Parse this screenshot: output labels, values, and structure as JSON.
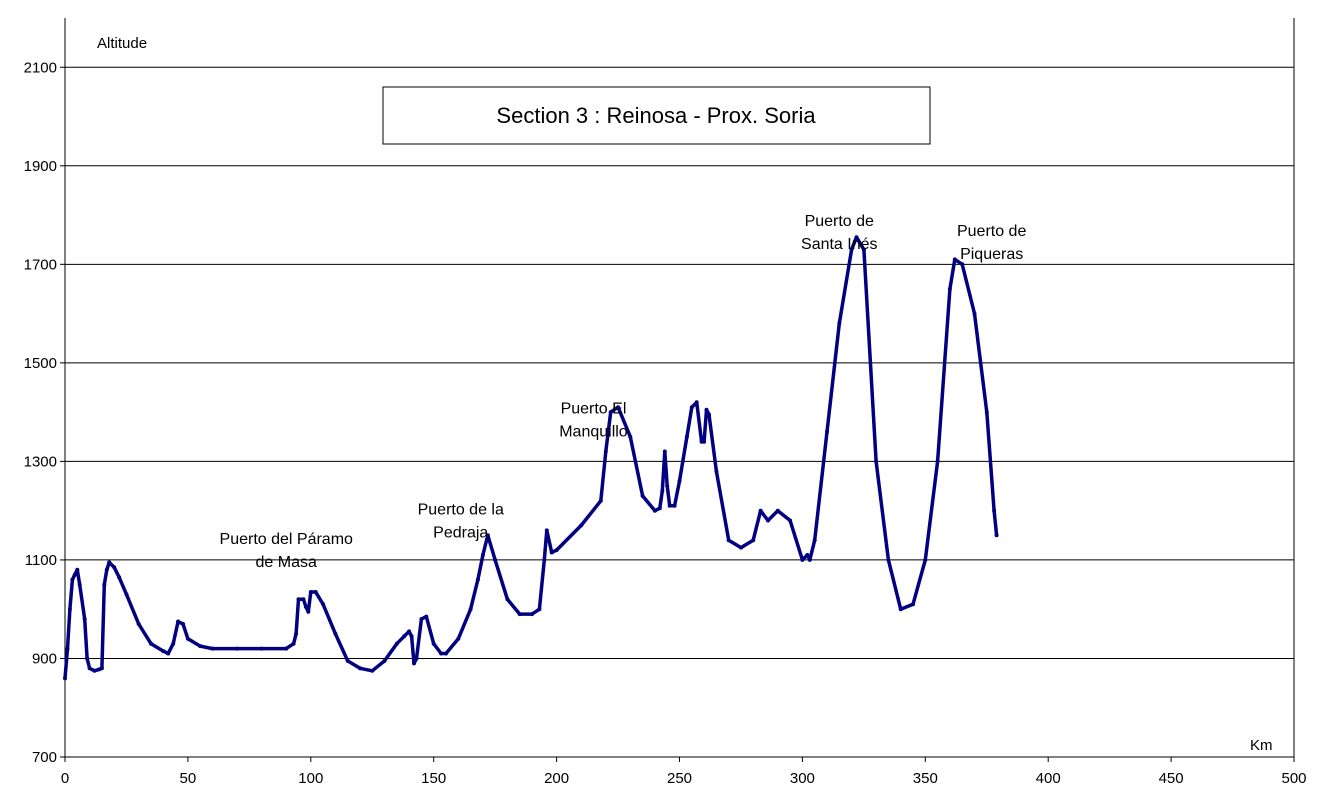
{
  "chart_data": {
    "type": "line",
    "title": "Section  3 : Reinosa - Prox. Soria",
    "xlabel": "Km",
    "ylabel": "Altitude",
    "xlim": [
      0,
      500
    ],
    "ylim": [
      700,
      2200
    ],
    "x_ticks": [
      0,
      50,
      100,
      150,
      200,
      250,
      300,
      350,
      400,
      450,
      500
    ],
    "y_ticks": [
      700,
      900,
      1100,
      1300,
      1500,
      1700,
      1900,
      2100
    ],
    "grid": "horizontal",
    "series_color": "#000080",
    "series": [
      {
        "x": [
          0,
          1,
          2,
          3,
          4,
          5,
          6,
          8,
          9,
          10,
          12,
          14,
          15,
          16,
          17,
          18,
          20,
          22,
          25,
          30,
          35,
          40,
          42,
          44,
          46,
          48,
          50,
          55,
          60,
          70,
          80,
          90,
          93,
          94,
          95,
          97,
          98,
          99,
          100,
          102,
          105,
          110,
          115,
          120,
          125,
          130,
          135,
          138,
          140,
          141,
          142,
          143,
          145,
          147,
          150,
          153,
          155,
          160,
          165,
          168,
          170,
          172,
          175,
          180,
          185,
          190,
          193,
          195,
          196,
          198,
          200,
          210,
          218,
          220,
          222,
          225,
          230,
          235,
          240,
          242,
          243,
          244,
          245,
          246,
          248,
          250,
          253,
          255,
          257,
          259,
          260,
          261,
          262,
          265,
          270,
          275,
          280,
          283,
          286,
          290,
          295,
          300,
          302,
          303,
          305,
          310,
          315,
          320,
          322,
          325,
          330,
          335,
          340,
          345,
          350,
          355,
          360,
          362,
          365,
          370,
          375,
          378,
          379
        ],
        "y": [
          860,
          920,
          1000,
          1060,
          1070,
          1080,
          1050,
          980,
          900,
          880,
          875,
          878,
          880,
          1050,
          1080,
          1095,
          1085,
          1065,
          1030,
          970,
          930,
          915,
          910,
          930,
          975,
          970,
          940,
          925,
          920,
          920,
          920,
          920,
          930,
          950,
          1020,
          1020,
          1005,
          995,
          1035,
          1035,
          1010,
          950,
          895,
          880,
          875,
          895,
          930,
          945,
          955,
          945,
          890,
          900,
          980,
          985,
          930,
          910,
          910,
          940,
          1000,
          1060,
          1110,
          1150,
          1100,
          1020,
          990,
          990,
          1000,
          1100,
          1160,
          1115,
          1120,
          1170,
          1220,
          1320,
          1400,
          1410,
          1350,
          1230,
          1200,
          1205,
          1240,
          1320,
          1250,
          1210,
          1210,
          1260,
          1350,
          1410,
          1420,
          1340,
          1340,
          1405,
          1395,
          1280,
          1140,
          1125,
          1140,
          1200,
          1180,
          1200,
          1180,
          1100,
          1110,
          1100,
          1140,
          1360,
          1580,
          1730,
          1755,
          1730,
          1300,
          1100,
          1000,
          1010,
          1100,
          1300,
          1650,
          1710,
          1700,
          1600,
          1400,
          1200,
          1150
        ]
      }
    ],
    "annotations": [
      {
        "lines": [
          "Puerto del Páramo",
          "de Masa"
        ],
        "x": 90,
        "y": 1165
      },
      {
        "lines": [
          "Puerto de la",
          "Pedraja"
        ],
        "x": 161,
        "y": 1225
      },
      {
        "lines": [
          "Puerto El",
          "Manquillo"
        ],
        "x": 215,
        "y": 1430
      },
      {
        "lines": [
          "Puerto de",
          "Santa Inés"
        ],
        "x": 315,
        "y": 1810
      },
      {
        "lines": [
          "Puerto de",
          "Piqueras"
        ],
        "x": 377,
        "y": 1790
      }
    ]
  }
}
